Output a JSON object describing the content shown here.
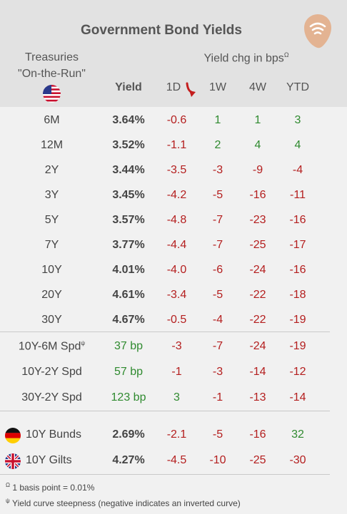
{
  "title": "Government Bond Yields",
  "header": {
    "treasuries_line1": "Treasuries",
    "treasuries_line2": "\"On-the-Run\"",
    "yield_chg": "Yield chg in bps",
    "yield_chg_sup": "Ω",
    "col_yield": "Yield",
    "col_1d": "1D",
    "col_1w": "1W",
    "col_4w": "4W",
    "col_ytd": "YTD"
  },
  "treasury_rows": [
    {
      "label": "6M",
      "yield": "3.64%",
      "d1": "-0.6",
      "w1": "1",
      "w4": "1",
      "ytd": "3"
    },
    {
      "label": "12M",
      "yield": "3.52%",
      "d1": "-1.1",
      "w1": "2",
      "w4": "4",
      "ytd": "4"
    },
    {
      "label": "2Y",
      "yield": "3.44%",
      "d1": "-3.5",
      "w1": "-3",
      "w4": "-9",
      "ytd": "-4"
    },
    {
      "label": "3Y",
      "yield": "3.45%",
      "d1": "-4.2",
      "w1": "-5",
      "w4": "-16",
      "ytd": "-11"
    },
    {
      "label": "5Y",
      "yield": "3.57%",
      "d1": "-4.8",
      "w1": "-7",
      "w4": "-23",
      "ytd": "-16"
    },
    {
      "label": "7Y",
      "yield": "3.77%",
      "d1": "-4.4",
      "w1": "-7",
      "w4": "-25",
      "ytd": "-17"
    },
    {
      "label": "10Y",
      "yield": "4.01%",
      "d1": "-4.0",
      "w1": "-6",
      "w4": "-24",
      "ytd": "-16"
    },
    {
      "label": "20Y",
      "yield": "4.61%",
      "d1": "-3.4",
      "w1": "-5",
      "w4": "-22",
      "ytd": "-18"
    },
    {
      "label": "30Y",
      "yield": "4.67%",
      "d1": "-0.5",
      "w1": "-4",
      "w4": "-22",
      "ytd": "-19"
    }
  ],
  "spread_rows": [
    {
      "label": "10Y-6M Spd",
      "sup": "ψ",
      "yield": "37 bp",
      "d1": "-3",
      "w1": "-7",
      "w4": "-24",
      "ytd": "-19"
    },
    {
      "label": "10Y-2Y Spd",
      "sup": "",
      "yield": "57 bp",
      "d1": "-1",
      "w1": "-3",
      "w4": "-14",
      "ytd": "-12"
    },
    {
      "label": "30Y-2Y Spd",
      "sup": "",
      "yield": "123 bp",
      "d1": "3",
      "w1": "-1",
      "w4": "-13",
      "ytd": "-14"
    }
  ],
  "intl_rows": [
    {
      "label": "10Y Bunds",
      "yield": "2.69%",
      "d1": "-2.1",
      "w1": "-5",
      "w4": "-16",
      "ytd": "32"
    },
    {
      "label": "10Y Gilts",
      "yield": "4.27%",
      "d1": "-4.5",
      "w1": "-10",
      "w4": "-25",
      "ytd": "-30"
    }
  ],
  "footnotes": {
    "basis_sym": "Ω",
    "basis_text": "1 basis point = 0.01%",
    "steep_sym": "ψ",
    "steep_text": "Yield curve steepness (negative indicates an inverted curve)"
  },
  "colors": {
    "negative": "#b41e1e",
    "positive": "#2f8a2f",
    "header_bg": "#e2e2e2",
    "accent": "#e0b08f"
  },
  "icons": {
    "logo": "signal-logo-icon",
    "us_flag": "us-flag-icon",
    "sort": "sort-arrow-down-icon",
    "de_flag": "germany-flag-icon",
    "uk_flag": "uk-flag-icon"
  }
}
